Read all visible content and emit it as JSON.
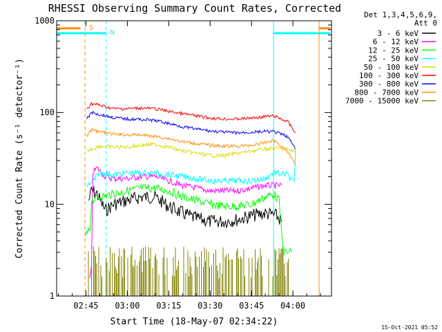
{
  "chart_data": {
    "type": "line",
    "title": "RHESSI Observing Summary Count Rates, Corrected",
    "xlabel": "Start Time (18-May-07 02:34:22)",
    "ylabel": "Corrected Count Rate (s⁻¹ detector⁻¹)",
    "yscale": "log",
    "ylim": [
      1,
      1000
    ],
    "xlim": [
      "02:34:22",
      "04:14:00"
    ],
    "x_ticks": [
      "02:45",
      "03:00",
      "03:15",
      "03:30",
      "03:45",
      "04:00"
    ],
    "y_ticks": [
      "1",
      "10",
      "100",
      "1000"
    ],
    "grid": false,
    "legend_position": "right",
    "legend_header": [
      "Det 1,3,4,5,6,9,",
      "Att 0"
    ],
    "timestamp": "15-Oct-2021 05:52",
    "annotations": [
      {
        "label": "S",
        "color": "#ff8c00",
        "time": "02:44:40",
        "bar_start": "02:34:22",
        "bar_end": "02:43:00"
      },
      {
        "label": "N",
        "color": "#00ffff",
        "time": "02:52:20",
        "bar_start": "02:34:22",
        "bar_end": "02:52:20"
      },
      {
        "label": "",
        "color": "#00ffff",
        "time": "03:53:00",
        "bar_start": "03:53:00",
        "bar_end": "04:13:30"
      },
      {
        "label": "",
        "color": "#ff8c00",
        "time": "04:09:30",
        "bar_start": "04:09:30",
        "bar_end": "04:13:30"
      }
    ],
    "series": [
      {
        "name": "3 - 6 keV",
        "color": "#000000",
        "points": [
          [
            "02:46:00",
            11
          ],
          [
            "02:47:00",
            14
          ],
          [
            "02:49:00",
            13
          ],
          [
            "02:52:00",
            8.5
          ],
          [
            "02:55:00",
            10
          ],
          [
            "03:00:00",
            11
          ],
          [
            "03:05:00",
            12
          ],
          [
            "03:10:00",
            12
          ],
          [
            "03:15:00",
            9.5
          ],
          [
            "03:20:00",
            8
          ],
          [
            "03:25:00",
            7
          ],
          [
            "03:30:00",
            6.5
          ],
          [
            "03:35:00",
            6.5
          ],
          [
            "03:40:00",
            6.8
          ],
          [
            "03:45:00",
            7.5
          ],
          [
            "03:50:00",
            8
          ],
          [
            "03:54:00",
            7.5
          ],
          [
            "03:56:00",
            6.5
          ]
        ]
      },
      {
        "name": "6 - 12 keV",
        "color": "#ff00ff",
        "points": [
          [
            "02:46:20",
            1.5
          ],
          [
            "02:47:00",
            2
          ],
          [
            "02:47:30",
            22
          ],
          [
            "02:49:00",
            25
          ],
          [
            "02:52:00",
            20
          ],
          [
            "02:55:00",
            19
          ],
          [
            "03:00:00",
            19
          ],
          [
            "03:05:00",
            20
          ],
          [
            "03:10:00",
            20
          ],
          [
            "03:15:00",
            18
          ],
          [
            "03:20:00",
            16
          ],
          [
            "03:25:00",
            15
          ],
          [
            "03:30:00",
            14
          ],
          [
            "03:35:00",
            14
          ],
          [
            "03:40:00",
            14
          ],
          [
            "03:45:00",
            15
          ],
          [
            "03:50:00",
            16
          ],
          [
            "03:56:00",
            16
          ]
        ]
      },
      {
        "name": "12 - 25 keV",
        "color": "#00ff00",
        "points": [
          [
            "02:44:50",
            4.5
          ],
          [
            "02:45:50",
            5
          ],
          [
            "02:46:30",
            5.5
          ],
          [
            "02:47:00",
            11
          ],
          [
            "02:50:00",
            12
          ],
          [
            "02:55:00",
            13
          ],
          [
            "03:00:00",
            14
          ],
          [
            "03:05:00",
            15
          ],
          [
            "03:10:00",
            15
          ],
          [
            "03:15:00",
            14
          ],
          [
            "03:20:00",
            12
          ],
          [
            "03:25:00",
            11
          ],
          [
            "03:30:00",
            10
          ],
          [
            "03:35:00",
            9.5
          ],
          [
            "03:40:00",
            9.5
          ],
          [
            "03:45:00",
            10
          ],
          [
            "03:50:00",
            12
          ],
          [
            "03:53:00",
            13
          ],
          [
            "03:55:00",
            11
          ],
          [
            "03:56:30",
            3
          ],
          [
            "03:59:30",
            3
          ]
        ]
      },
      {
        "name": "25 - 50 keV",
        "color": "#00ffff",
        "points": [
          [
            "02:45:20",
            16
          ],
          [
            "02:47:00",
            17
          ],
          [
            "02:50:00",
            22
          ],
          [
            "02:55:00",
            21
          ],
          [
            "03:00:00",
            22
          ],
          [
            "03:05:00",
            22
          ],
          [
            "03:10:00",
            22
          ],
          [
            "03:15:00",
            21
          ],
          [
            "03:20:00",
            20
          ],
          [
            "03:25:00",
            19
          ],
          [
            "03:30:00",
            18
          ],
          [
            "03:35:00",
            18
          ],
          [
            "03:40:00",
            18
          ],
          [
            "03:45:00",
            18
          ],
          [
            "03:50:00",
            19
          ],
          [
            "03:53:00",
            22
          ],
          [
            "03:58:00",
            21
          ],
          [
            "04:00:30",
            17
          ],
          [
            "04:01:00",
            40
          ]
        ]
      },
      {
        "name": "50 - 100 keV",
        "color": "#dcdc00",
        "points": [
          [
            "02:45:20",
            38
          ],
          [
            "02:47:00",
            40
          ],
          [
            "02:50:00",
            43
          ],
          [
            "02:55:00",
            42
          ],
          [
            "03:00:00",
            42
          ],
          [
            "03:05:00",
            44
          ],
          [
            "03:10:00",
            45
          ],
          [
            "03:15:00",
            42
          ],
          [
            "03:20:00",
            38
          ],
          [
            "03:25:00",
            36
          ],
          [
            "03:30:00",
            34
          ],
          [
            "03:35:00",
            34
          ],
          [
            "03:40:00",
            36
          ],
          [
            "03:45:00",
            38
          ],
          [
            "03:50:00",
            40
          ],
          [
            "03:53:00",
            41
          ],
          [
            "03:58:00",
            40
          ],
          [
            "04:01:00",
            37
          ]
        ]
      },
      {
        "name": "100 - 300 keV",
        "color": "#ff0000",
        "points": [
          [
            "02:45:20",
            110
          ],
          [
            "02:47:00",
            125
          ],
          [
            "02:50:00",
            120
          ],
          [
            "02:55:00",
            110
          ],
          [
            "03:00:00",
            110
          ],
          [
            "03:05:00",
            112
          ],
          [
            "03:10:00",
            110
          ],
          [
            "03:15:00",
            103
          ],
          [
            "03:20:00",
            97
          ],
          [
            "03:25:00",
            92
          ],
          [
            "03:30:00",
            87
          ],
          [
            "03:35:00",
            85
          ],
          [
            "03:40:00",
            85
          ],
          [
            "03:45:00",
            87
          ],
          [
            "03:50:00",
            90
          ],
          [
            "03:53:00",
            92
          ],
          [
            "03:58:00",
            80
          ],
          [
            "04:01:00",
            60
          ]
        ]
      },
      {
        "name": "300 - 800 keV",
        "color": "#0000ff",
        "points": [
          [
            "02:45:20",
            85
          ],
          [
            "02:47:00",
            100
          ],
          [
            "02:50:00",
            95
          ],
          [
            "02:55:00",
            88
          ],
          [
            "03:00:00",
            85
          ],
          [
            "03:05:00",
            84
          ],
          [
            "03:10:00",
            82
          ],
          [
            "03:15:00",
            76
          ],
          [
            "03:20:00",
            70
          ],
          [
            "03:25:00",
            66
          ],
          [
            "03:30:00",
            63
          ],
          [
            "03:35:00",
            61
          ],
          [
            "03:40:00",
            60
          ],
          [
            "03:45:00",
            61
          ],
          [
            "03:50:00",
            62
          ],
          [
            "03:53:00",
            62
          ],
          [
            "03:58:00",
            55
          ],
          [
            "04:01:00",
            40
          ]
        ]
      },
      {
        "name": "800 - 7000 keV",
        "color": "#ff8c00",
        "points": [
          [
            "02:45:20",
            55
          ],
          [
            "02:47:00",
            65
          ],
          [
            "02:50:00",
            62
          ],
          [
            "02:55:00",
            58
          ],
          [
            "03:00:00",
            57
          ],
          [
            "03:05:00",
            57
          ],
          [
            "03:10:00",
            55
          ],
          [
            "03:15:00",
            52
          ],
          [
            "03:20:00",
            48
          ],
          [
            "03:25:00",
            46
          ],
          [
            "03:30:00",
            44
          ],
          [
            "03:35:00",
            43
          ],
          [
            "03:40:00",
            43
          ],
          [
            "03:45:00",
            44
          ],
          [
            "03:50:00",
            47
          ],
          [
            "03:53:00",
            50
          ],
          [
            "03:58:00",
            38
          ],
          [
            "04:01:00",
            27
          ]
        ]
      },
      {
        "name": "7000 - 15000 keV",
        "color": "#808000",
        "points": [
          [
            "02:45:30",
            1.6
          ],
          [
            "02:47:30",
            1.8
          ],
          [
            "02:55:00",
            2
          ],
          [
            "03:03:00",
            2.5
          ],
          [
            "03:08:00",
            2.2
          ],
          [
            "03:14:00",
            2
          ],
          [
            "03:20:00",
            1.7
          ],
          [
            "03:30:00",
            1.8
          ],
          [
            "03:40:00",
            1.7
          ],
          [
            "03:48:00",
            2
          ],
          [
            "03:55:00",
            2.2
          ],
          [
            "04:00:00",
            2
          ]
        ]
      }
    ]
  }
}
